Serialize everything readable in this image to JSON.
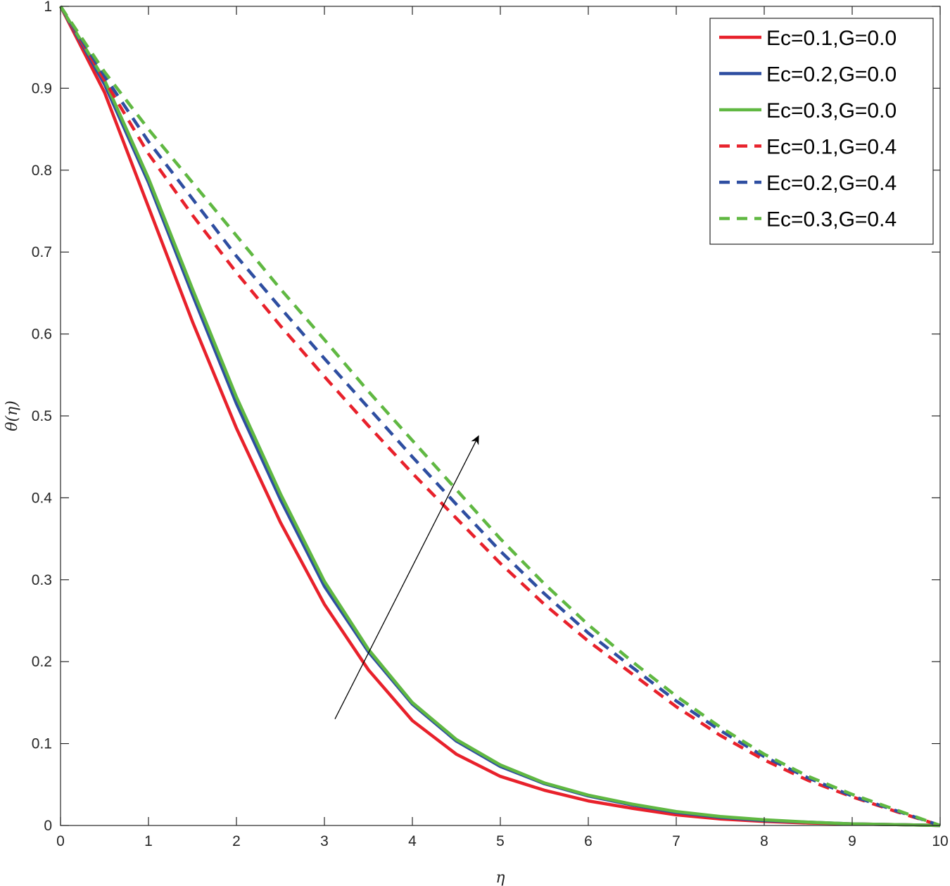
{
  "chart_data": {
    "type": "line",
    "xlabel": "η",
    "ylabel": "θ(η)",
    "xlim": [
      0,
      10
    ],
    "ylim": [
      0,
      1
    ],
    "x_ticks": [
      "0",
      "1",
      "2",
      "3",
      "4",
      "5",
      "6",
      "7",
      "8",
      "9",
      "10"
    ],
    "y_ticks": [
      "0",
      "0.1",
      "0.2",
      "0.3",
      "0.4",
      "0.5",
      "0.6",
      "0.7",
      "0.8",
      "0.9",
      "1"
    ],
    "grid": false,
    "legend_position": "top-right",
    "x": [
      0,
      0.5,
      1,
      1.5,
      2,
      2.5,
      3,
      3.5,
      4,
      4.5,
      5,
      5.5,
      6,
      6.5,
      7,
      7.5,
      8,
      8.5,
      9,
      9.5,
      10
    ],
    "series": [
      {
        "name": "Ec=0.1,G=0.0",
        "color": "#e8212b",
        "dash": "solid",
        "values": [
          1.0,
          0.895,
          0.755,
          0.615,
          0.485,
          0.37,
          0.27,
          0.19,
          0.128,
          0.087,
          0.06,
          0.043,
          0.03,
          0.021,
          0.013,
          0.008,
          0.005,
          0.003,
          0.002,
          0.001,
          0.0
        ]
      },
      {
        "name": "Ec=0.2,G=0.0",
        "color": "#2e4ea1",
        "dash": "solid",
        "values": [
          1.0,
          0.905,
          0.785,
          0.648,
          0.515,
          0.398,
          0.292,
          0.212,
          0.148,
          0.103,
          0.072,
          0.051,
          0.036,
          0.025,
          0.016,
          0.01,
          0.006,
          0.004,
          0.002,
          0.001,
          0.0
        ]
      },
      {
        "name": "Ec=0.3,G=0.0",
        "color": "#60b842",
        "dash": "solid",
        "values": [
          1.0,
          0.91,
          0.79,
          0.655,
          0.523,
          0.405,
          0.298,
          0.215,
          0.15,
          0.105,
          0.074,
          0.052,
          0.037,
          0.026,
          0.017,
          0.011,
          0.007,
          0.004,
          0.002,
          0.001,
          0.0
        ]
      },
      {
        "name": "Ec=0.1,G=0.4",
        "color": "#e8212b",
        "dash": "dashed",
        "values": [
          1.0,
          0.91,
          0.82,
          0.745,
          0.675,
          0.61,
          0.548,
          0.488,
          0.43,
          0.375,
          0.32,
          0.27,
          0.225,
          0.185,
          0.145,
          0.11,
          0.08,
          0.055,
          0.035,
          0.017,
          0.0
        ]
      },
      {
        "name": "Ec=0.2,G=0.4",
        "color": "#2e4ea1",
        "dash": "dashed",
        "values": [
          1.0,
          0.915,
          0.835,
          0.765,
          0.695,
          0.632,
          0.57,
          0.51,
          0.45,
          0.392,
          0.335,
          0.283,
          0.235,
          0.193,
          0.152,
          0.116,
          0.084,
          0.058,
          0.036,
          0.018,
          0.0
        ]
      },
      {
        "name": "Ec=0.3,G=0.4",
        "color": "#60b842",
        "dash": "dashed",
        "values": [
          1.0,
          0.92,
          0.85,
          0.785,
          0.72,
          0.655,
          0.593,
          0.53,
          0.47,
          0.41,
          0.35,
          0.295,
          0.245,
          0.2,
          0.158,
          0.12,
          0.087,
          0.06,
          0.038,
          0.019,
          0.0
        ]
      }
    ],
    "annotations": [
      {
        "type": "arrow",
        "from": [
          3.12,
          0.13
        ],
        "to": [
          4.75,
          0.475
        ]
      }
    ]
  }
}
